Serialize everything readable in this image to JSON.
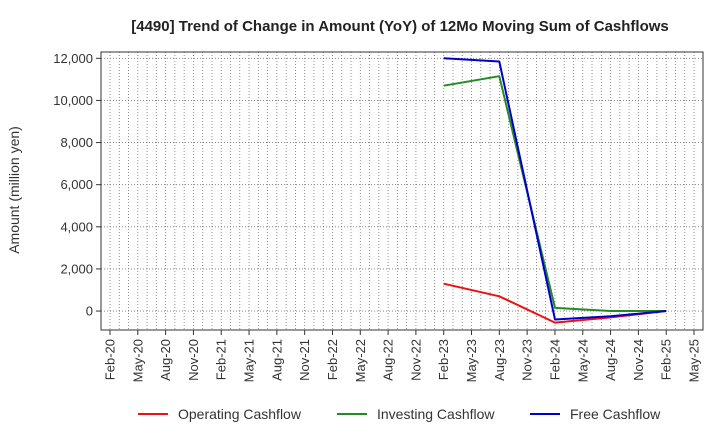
{
  "chart_data": {
    "type": "line",
    "title": "[4490]  Trend of Change in Amount (YoY) of 12Mo Moving Sum of Cashflows",
    "ylabel": "Amount (million yen)",
    "xlabel": "",
    "ylim": [
      -900,
      12300
    ],
    "yticks": [
      0,
      2000,
      4000,
      6000,
      8000,
      10000,
      12000
    ],
    "ytick_labels": [
      "0",
      "2,000",
      "4,000",
      "6,000",
      "8,000",
      "10,000",
      "12,000"
    ],
    "categories": [
      "Feb-20",
      "May-20",
      "Aug-20",
      "Nov-20",
      "Feb-21",
      "May-21",
      "Aug-21",
      "Nov-21",
      "Feb-22",
      "May-22",
      "Aug-22",
      "Nov-22",
      "Feb-23",
      "May-23",
      "Aug-23",
      "Nov-23",
      "Feb-24",
      "May-24",
      "Aug-24",
      "Nov-24",
      "Feb-25",
      "May-25"
    ],
    "series": [
      {
        "name": "Operating Cashflow",
        "color": "#ee1111",
        "points": [
          [
            12,
            1300
          ],
          [
            14,
            700
          ],
          [
            16,
            -550
          ],
          [
            18,
            -300
          ],
          [
            20,
            0
          ]
        ]
      },
      {
        "name": "Investing Cashflow",
        "color": "#228b22",
        "points": [
          [
            12,
            10700
          ],
          [
            14,
            11150
          ],
          [
            16,
            150
          ],
          [
            18,
            0
          ],
          [
            20,
            0
          ]
        ]
      },
      {
        "name": "Free Cashflow",
        "color": "#0000cc",
        "points": [
          [
            12,
            12000
          ],
          [
            14,
            11850
          ],
          [
            16,
            -400
          ],
          [
            18,
            -250
          ],
          [
            20,
            0
          ]
        ]
      }
    ],
    "legend_position": "bottom"
  }
}
